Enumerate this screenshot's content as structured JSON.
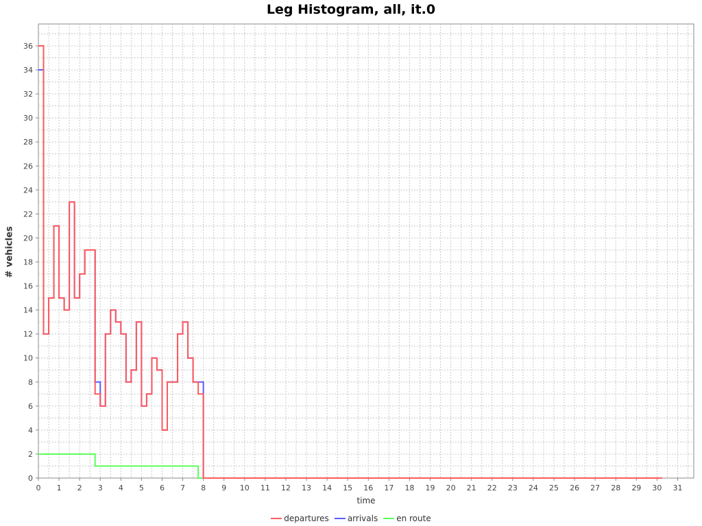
{
  "chart_data": {
    "type": "line",
    "title": "Leg Histogram, all, it.0",
    "xlabel": "time",
    "ylabel": "# vehicles",
    "xlim": [
      0,
      32
    ],
    "ylim": [
      0,
      38
    ],
    "xticks": [
      0,
      1,
      2,
      3,
      4,
      5,
      6,
      7,
      8,
      9,
      10,
      11,
      12,
      13,
      14,
      15,
      16,
      17,
      18,
      19,
      20,
      21,
      22,
      23,
      24,
      25,
      26,
      27,
      28,
      29,
      30,
      31
    ],
    "yticks": [
      0,
      2,
      4,
      6,
      8,
      10,
      12,
      14,
      16,
      18,
      20,
      22,
      24,
      26,
      28,
      30,
      32,
      34,
      36
    ],
    "grid": true,
    "legend_position": "bottom",
    "bin_width_hours": 0.25,
    "series": [
      {
        "name": "departures",
        "color": "#ff5a5a",
        "values": [
          36,
          12,
          15,
          21,
          15,
          14,
          23,
          15,
          17,
          19,
          19,
          7,
          6,
          12,
          14,
          13,
          12,
          8,
          9,
          13,
          6,
          7,
          10,
          9,
          4,
          8,
          8,
          12,
          13,
          10,
          8,
          7,
          0
        ]
      },
      {
        "name": "arrivals",
        "color": "#5a5aff",
        "values": [
          34,
          12,
          15,
          21,
          15,
          14,
          23,
          15,
          17,
          19,
          19,
          8,
          6,
          12,
          14,
          13,
          12,
          8,
          9,
          13,
          6,
          7,
          10,
          9,
          4,
          8,
          8,
          12,
          13,
          10,
          8,
          8,
          0
        ]
      },
      {
        "name": "en route",
        "color": "#5aff5a",
        "values": [
          2,
          2,
          2,
          2,
          2,
          2,
          2,
          2,
          2,
          2,
          2,
          1,
          1,
          1,
          1,
          1,
          1,
          1,
          1,
          1,
          1,
          1,
          1,
          1,
          1,
          1,
          1,
          1,
          1,
          1,
          1,
          0,
          0
        ]
      }
    ],
    "zero_extends_to": 30.25
  }
}
